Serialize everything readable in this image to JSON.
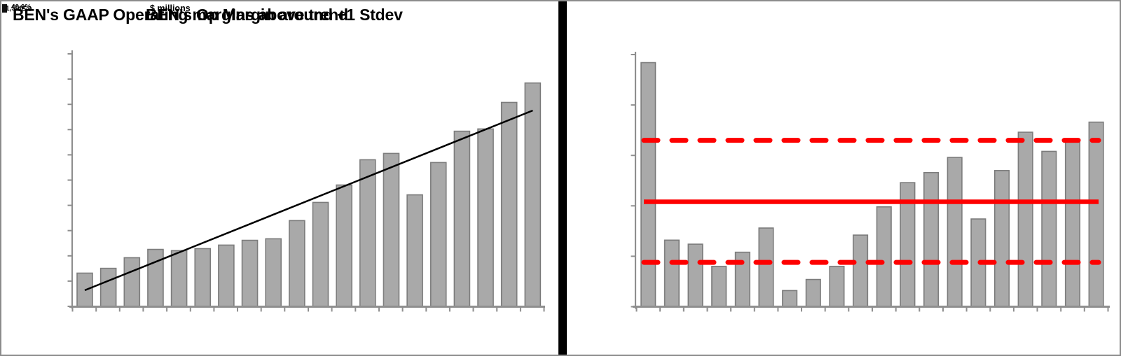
{
  "page": {
    "background": "#ffffff"
  },
  "titles": {
    "title_a": "BEN's GAAP Operating margins above trend",
    "title_b": "BEN's Op Margin around +1 Stdev",
    "overlay_small": "$ millions",
    "corner_fragments": [
      "1,500",
      "40.0%",
      "15.0"
    ]
  },
  "colors": {
    "bar_fill": "#a9a9a9",
    "bar_stroke": "#7c7c7c",
    "axis": "#8f8f8f",
    "trend_line": "#000000",
    "red_line": "#fe0000",
    "divider": "#000000",
    "border": "#8c8c8c"
  },
  "chart_data": [
    {
      "id": "left-chart",
      "type": "bar",
      "title": "BEN's GAAP Operating margins above trend",
      "x_labels_visible": false,
      "y_labels_visible": false,
      "y_tick_count": 11,
      "x_tick_count": 21,
      "ylim": [
        0,
        100
      ],
      "units": "unlabeled axis (values estimated as % of axis max)",
      "values": [
        13.3,
        15.2,
        19.4,
        22.7,
        22.2,
        23.0,
        24.4,
        26.3,
        26.9,
        34.1,
        41.3,
        48.2,
        58.2,
        60.7,
        44.3,
        57.1,
        69.5,
        70.4,
        80.9,
        88.6
      ],
      "trendline": {
        "type": "linear",
        "start_value": 6.5,
        "end_value": 77.7,
        "color": "#000000"
      },
      "grid": false,
      "legend": "none"
    },
    {
      "id": "right-chart",
      "type": "bar",
      "title": "BEN's Op Margin around +1 Stdev",
      "x_labels_visible": false,
      "y_labels_visible": false,
      "y_tick_count": 6,
      "x_tick_count": 21,
      "ylim": [
        0,
        25
      ],
      "units": "unlabeled axis (operating margin, est. %)",
      "values": [
        24.2,
        6.6,
        6.2,
        4.0,
        5.4,
        7.8,
        1.6,
        2.7,
        4.0,
        7.1,
        9.9,
        12.3,
        13.3,
        14.8,
        8.7,
        13.5,
        17.3,
        15.4,
        16.6,
        18.3
      ],
      "reference_lines": {
        "mean": 10.4,
        "plus_1_stdev": 16.5,
        "minus_1_stdev": 4.4,
        "mean_style": "solid red",
        "stdev_style": "dashed red"
      },
      "grid": false,
      "legend": "none"
    }
  ]
}
